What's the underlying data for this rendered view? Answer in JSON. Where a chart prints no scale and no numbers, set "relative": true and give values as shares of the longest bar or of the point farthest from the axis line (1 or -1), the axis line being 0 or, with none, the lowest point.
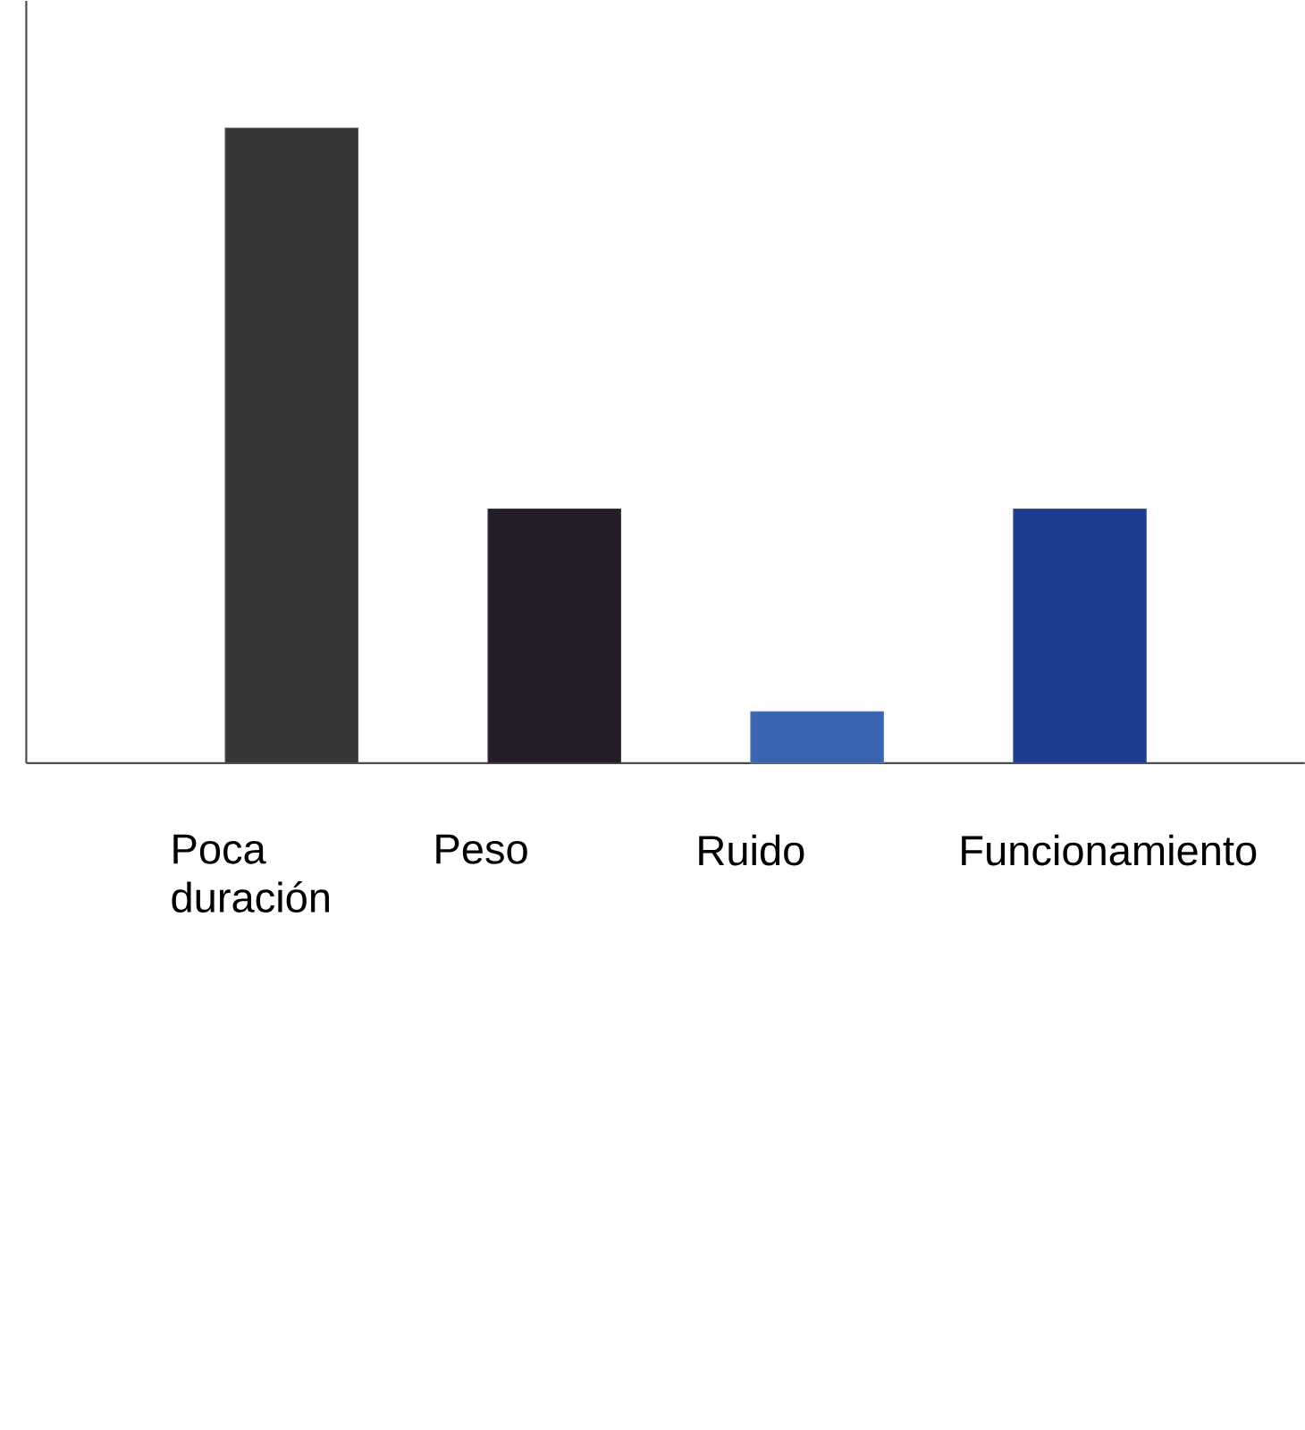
{
  "chart_data": {
    "type": "bar",
    "relative": true,
    "categories": [
      "Poca duración",
      "Peso",
      "Ruido",
      "Funcionamiento"
    ],
    "values": [
      1,
      0.4,
      0.081,
      0.4
    ],
    "colors": [
      "#363739",
      "#241c26",
      "#3a64ad",
      "#1d3d8f"
    ]
  }
}
